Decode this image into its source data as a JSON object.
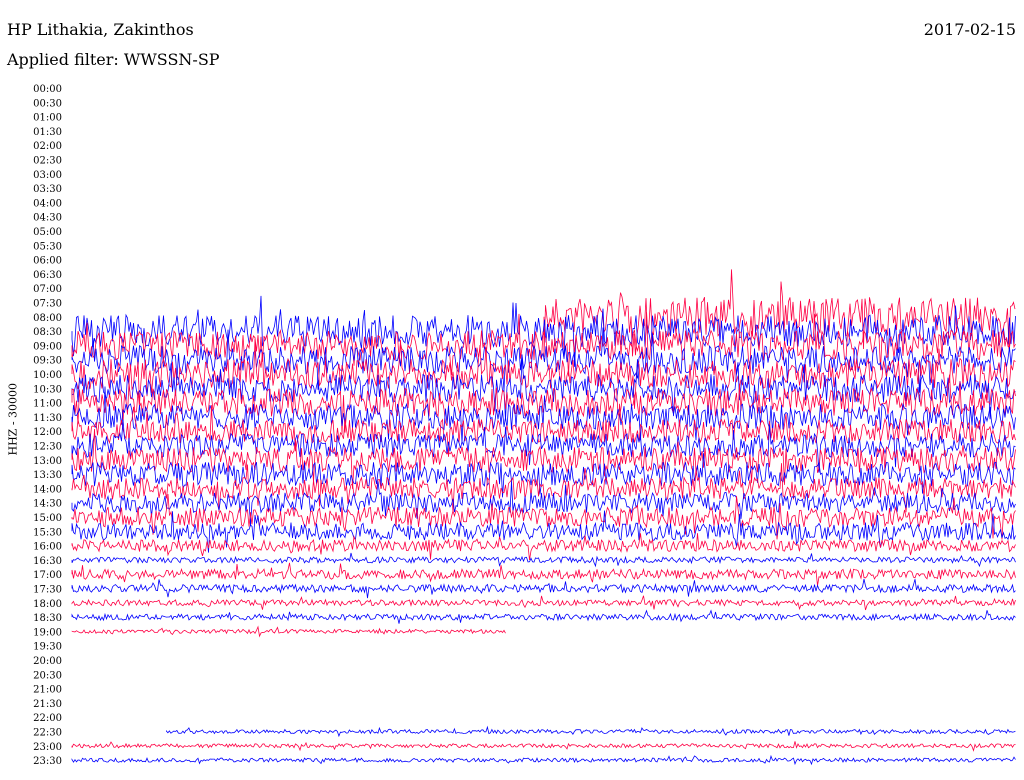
{
  "header": {
    "title": "HP Lithakia, Zakinthos",
    "subtitle": "Applied filter: WWSSN-SP",
    "date": "2017-02-15"
  },
  "chart_data": {
    "type": "line",
    "title": "HP Lithakia, Zakinthos",
    "subtitle": "Applied filter: WWSSN-SP",
    "ylabel": "HHZ - 30000",
    "time_labels": [
      "00:00",
      "00:30",
      "01:00",
      "01:30",
      "02:00",
      "02:30",
      "03:00",
      "03:30",
      "04:00",
      "04:30",
      "05:00",
      "05:30",
      "06:00",
      "06:30",
      "07:00",
      "07:30",
      "08:00",
      "08:30",
      "09:00",
      "09:30",
      "10:00",
      "10:30",
      "11:00",
      "11:30",
      "12:00",
      "12:30",
      "13:00",
      "13:30",
      "14:00",
      "14:30",
      "15:00",
      "15:30",
      "16:00",
      "16:30",
      "17:00",
      "17:30",
      "18:00",
      "18:30",
      "19:00",
      "19:30",
      "20:00",
      "20:30",
      "21:00",
      "21:30",
      "22:00",
      "22:30",
      "23:00",
      "23:30"
    ],
    "colors": [
      "#ff0044",
      "#0000ff"
    ],
    "row_noise_amplitude": [
      0,
      0,
      0,
      0,
      0,
      0,
      0,
      0,
      0,
      0,
      0,
      0,
      0,
      0,
      0,
      0,
      20,
      16,
      15,
      14,
      15,
      14,
      14,
      13,
      12,
      12,
      13,
      12,
      11,
      10,
      10,
      9,
      6,
      3,
      5,
      4,
      3,
      3,
      2,
      0,
      0,
      0,
      0,
      0,
      0,
      2,
      2,
      2
    ],
    "row_data_start_fraction": [
      1,
      1,
      1,
      1,
      1,
      1,
      1,
      1,
      1,
      1,
      1,
      1,
      1,
      1,
      1,
      1,
      0.5,
      0,
      0,
      0,
      0,
      0,
      0,
      0,
      0,
      0,
      0,
      0,
      0,
      0,
      0,
      0,
      0,
      0,
      0,
      0,
      0,
      0,
      0,
      1,
      1,
      1,
      1,
      1,
      1,
      0.1,
      0,
      0
    ],
    "row_data_end_fraction": [
      0,
      0,
      0,
      0,
      0,
      0,
      0,
      0,
      0,
      0,
      0,
      0,
      0,
      0,
      0,
      0,
      1,
      1,
      1,
      1,
      1,
      1,
      1,
      1,
      1,
      1,
      1,
      1,
      1,
      1,
      1,
      1,
      1,
      1,
      1,
      1,
      1,
      1,
      0.46,
      0,
      0,
      0,
      0,
      0,
      0,
      1,
      1,
      1
    ]
  }
}
